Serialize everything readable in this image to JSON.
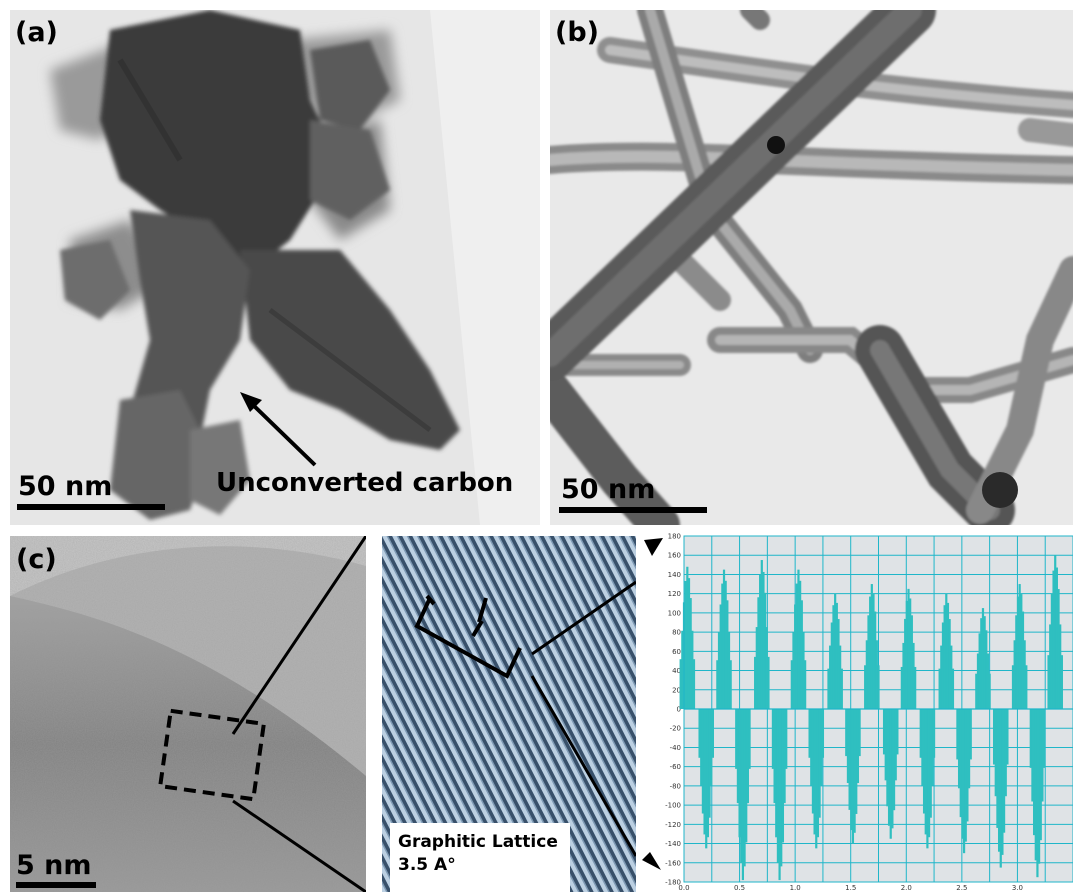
{
  "panels": {
    "a": {
      "label": "(a)",
      "scale": "50 nm",
      "annotation": "Unconverted carbon"
    },
    "b": {
      "label": "(b)",
      "scale": "50 nm"
    },
    "c": {
      "label": "(c)",
      "scale": "5 nm",
      "inset_title": "Graphitic Lattice",
      "inset_value": "3.5 A°"
    }
  },
  "chart_data": {
    "type": "bar",
    "title": "",
    "xlabel": "",
    "ylabel": "",
    "xlim": [
      0,
      3.5
    ],
    "ylim": [
      -180,
      180
    ],
    "grid": true,
    "x_ticks": [
      "0.0",
      "0.5",
      "1.0",
      "1.5",
      "2.0",
      "2.5",
      "3.0"
    ],
    "y_ticks": [
      "180",
      "160",
      "140",
      "120",
      "100",
      "80",
      "60",
      "40",
      "20",
      "0",
      "-20",
      "-40",
      "-60",
      "-80",
      "-100",
      "-120",
      "-140",
      "-160",
      "-180"
    ],
    "color": "#2fbfc0",
    "peaks": {
      "x": [
        0.03,
        0.36,
        0.7,
        1.03,
        1.36,
        1.69,
        2.02,
        2.36,
        2.69,
        3.02,
        3.34
      ],
      "y": [
        148,
        145,
        155,
        145,
        120,
        130,
        125,
        120,
        105,
        130,
        160
      ]
    },
    "troughs": {
      "x": [
        0.2,
        0.53,
        0.86,
        1.19,
        1.52,
        1.86,
        2.19,
        2.52,
        2.85,
        3.18
      ],
      "y": [
        -145,
        -178,
        -178,
        -145,
        -140,
        -135,
        -145,
        -150,
        -165,
        -175
      ]
    }
  }
}
